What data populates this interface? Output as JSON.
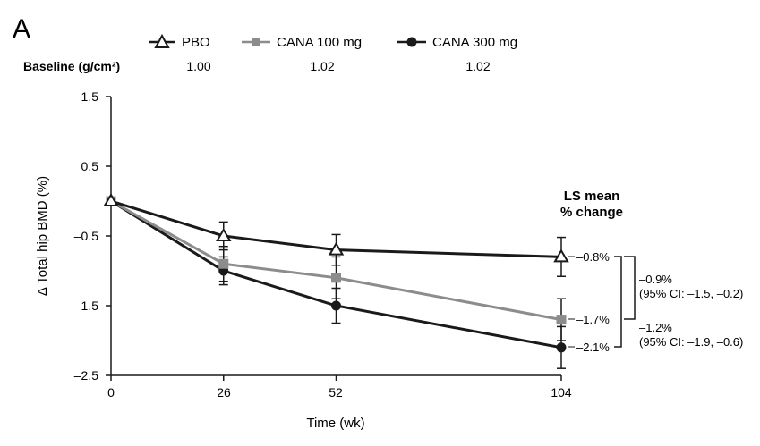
{
  "panel_letter": "A",
  "baseline": {
    "label": "Baseline (g/cm²)",
    "values": [
      "1.00",
      "1.02",
      "1.02"
    ]
  },
  "chart_data": {
    "type": "line",
    "title": "",
    "xlabel": "Time (wk)",
    "ylabel": "Δ Total hip BMD (%)",
    "x": [
      0,
      26,
      52,
      104
    ],
    "x_ticks": [
      "0",
      "26",
      "52",
      "104"
    ],
    "y_ticks": [
      "1.5",
      "0.5",
      "–0.5",
      "–1.5",
      "–2.5"
    ],
    "ylim": [
      -2.5,
      1.5
    ],
    "xlim": [
      0,
      104
    ],
    "grid": false,
    "legend_position": "top",
    "series": [
      {
        "name": "PBO",
        "marker": "open-triangle",
        "color": "#1a1a1a",
        "values": [
          0,
          -0.5,
          -0.7,
          -0.8
        ],
        "error": [
          0,
          0.2,
          0.22,
          0.28
        ]
      },
      {
        "name": "CANA 100 mg",
        "marker": "filled-square",
        "color": "#8c8c8c",
        "values": [
          0,
          -0.9,
          -1.1,
          -1.7
        ],
        "error": [
          0,
          0.25,
          0.3,
          0.3
        ]
      },
      {
        "name": "CANA 300 mg",
        "marker": "filled-circle",
        "color": "#1a1a1a",
        "values": [
          0,
          -1.0,
          -1.5,
          -2.1
        ],
        "error": [
          0,
          0.2,
          0.25,
          0.3
        ]
      }
    ],
    "annotations": {
      "header_line1": "LS mean",
      "header_line2": "% change",
      "end_labels": [
        "–0.8%",
        "–1.7%",
        "–2.1%"
      ],
      "comparisons": [
        {
          "line1": "–0.9%",
          "line2": "(95% CI: –1.5, –0.2)"
        },
        {
          "line1": "–1.2%",
          "line2": "(95% CI: –1.9, –0.6)"
        }
      ]
    }
  }
}
